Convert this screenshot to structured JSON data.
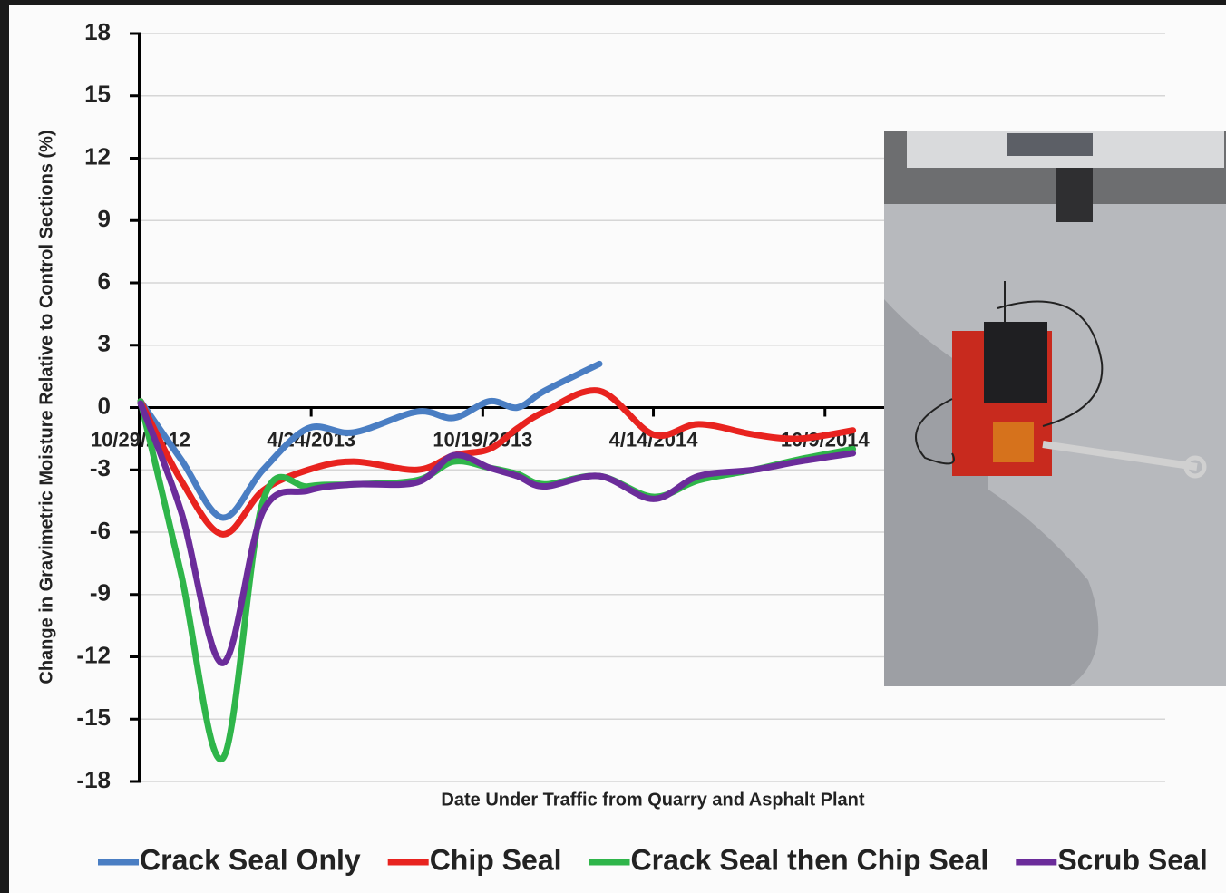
{
  "chart_data": {
    "type": "line",
    "y_label": "Change in Gravimetric Moisture Relative to Control Sections (%)",
    "x_label": "Date Under Traffic from Quarry and Asphalt Plant",
    "x": [
      "2012-10-29",
      "2012-12-10",
      "2013-01-22",
      "2013-03-05",
      "2013-04-21",
      "2013-06-07",
      "2013-08-12",
      "2013-09-19",
      "2013-10-26",
      "2013-11-24",
      "2013-12-22",
      "2014-02-17",
      "2014-04-14",
      "2014-05-31",
      "2014-07-27",
      "2014-09-12",
      "2014-11-07"
    ],
    "series": [
      {
        "name": "Crack Seal Only",
        "color": "#4a7ec3",
        "values": [
          0.3,
          -2.5,
          -5.3,
          -3.0,
          -1.0,
          -1.2,
          -0.2,
          -0.5,
          0.3,
          0.0,
          0.8,
          2.1,
          null,
          null,
          null,
          null,
          null
        ]
      },
      {
        "name": "Chip Seal",
        "color": "#e8231f",
        "values": [
          0.3,
          -3.5,
          -6.1,
          -4.0,
          -3.0,
          -2.6,
          -3.0,
          -2.3,
          -2.0,
          -1.0,
          -0.2,
          0.8,
          -1.3,
          -0.8,
          -1.3,
          -1.5,
          -1.1
        ]
      },
      {
        "name": "Crack Seal then Chip Seal",
        "color": "#2fb54a",
        "values": [
          0.3,
          -8.0,
          -16.9,
          -4.5,
          -3.8,
          -3.7,
          -3.5,
          -2.6,
          -2.9,
          -3.2,
          -3.7,
          -3.3,
          -4.3,
          -3.5,
          -3.0,
          -2.5,
          -2.0
        ]
      },
      {
        "name": "Scrub Seal",
        "color": "#6b2c9a",
        "values": [
          0.2,
          -5.0,
          -12.3,
          -5.0,
          -4.0,
          -3.7,
          -3.6,
          -2.3,
          -2.9,
          -3.3,
          -3.8,
          -3.3,
          -4.4,
          -3.3,
          -3.0,
          -2.6,
          -2.2
        ]
      }
    ],
    "xlim": [
      "2012-10-29",
      "2015-09-27"
    ],
    "xticks": [
      {
        "value": "2012-10-29",
        "label": "10/29/2012"
      },
      {
        "value": "2013-04-24",
        "label": "4/24/2013"
      },
      {
        "value": "2013-10-19",
        "label": "10/19/2013"
      },
      {
        "value": "2014-04-14",
        "label": "4/14/2014"
      },
      {
        "value": "2014-10-09",
        "label": "10/9/2014"
      }
    ],
    "ylim": [
      -18,
      18
    ],
    "yticks": [
      -18,
      -15,
      -12,
      -9,
      -6,
      -3,
      0,
      3,
      6,
      9,
      12,
      15,
      18
    ],
    "grid": true,
    "legend": "bottom"
  }
}
